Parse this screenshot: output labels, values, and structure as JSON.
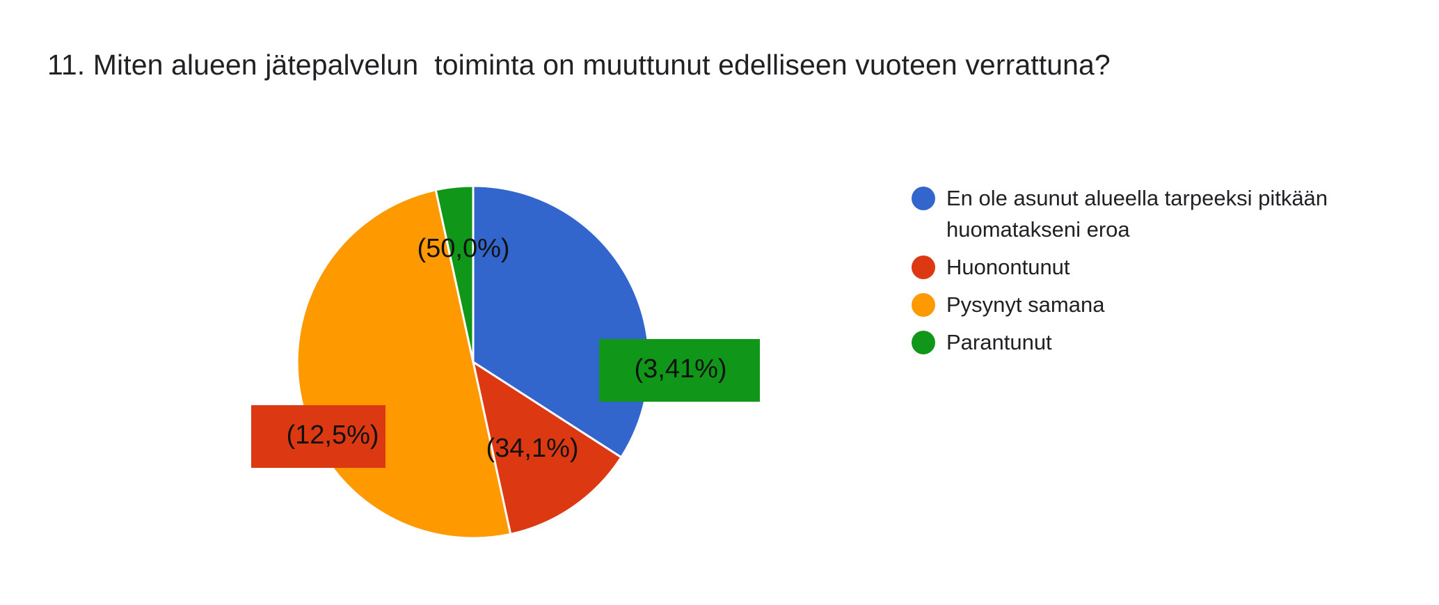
{
  "title": "11. Miten alueen jätepalvelun  toiminta on muuttunut edelliseen vuoteen verrattuna?",
  "chart_data": {
    "type": "pie",
    "start_angle_deg": 90,
    "direction": "clockwise",
    "slices": [
      {
        "label": "En ole asunut alueella tarpeeksi pitkään huomatakseni eroa",
        "value": 34.1,
        "value_label": "(34,1%)",
        "color": "#3366cc",
        "label_box": false
      },
      {
        "label": "Huonontunut",
        "value": 12.5,
        "value_label": "(12,5%)",
        "color": "#dc3912",
        "label_box": true
      },
      {
        "label": "Pysynyt samana",
        "value": 50.0,
        "value_label": "(50,0%)",
        "color": "#ff9900",
        "label_box": false
      },
      {
        "label": "Parantunut",
        "value": 3.41,
        "value_label": "(3,41%)",
        "color": "#109618",
        "label_box": true
      }
    ]
  },
  "legend": {
    "items": [
      {
        "label": "En ole asunut alueella tarpeeksi pitkään huomatakseni eroa",
        "color": "#3366cc"
      },
      {
        "label": "Huonontunut",
        "color": "#dc3912"
      },
      {
        "label": "Pysynyt samana",
        "color": "#ff9900"
      },
      {
        "label": "Parantunut",
        "color": "#109618"
      }
    ]
  }
}
